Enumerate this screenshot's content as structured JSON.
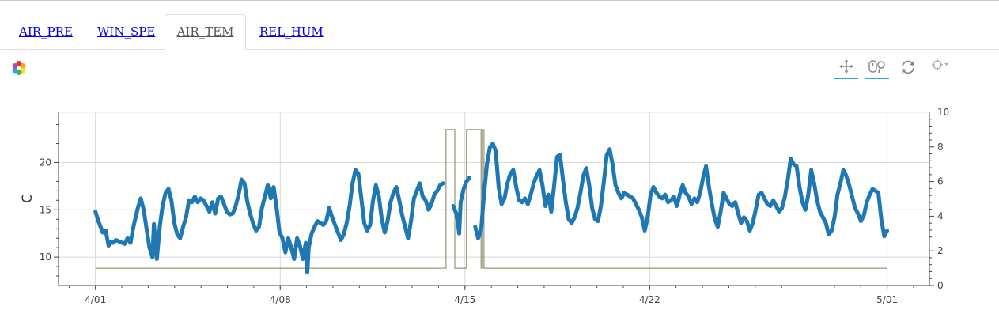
{
  "tabs": [
    {
      "label": "AIR_PRE",
      "active": false
    },
    {
      "label": "WIN_SPE",
      "active": false
    },
    {
      "label": "AIR_TEM",
      "active": true
    },
    {
      "label": "REL_HUM",
      "active": false
    }
  ],
  "toolbar": {
    "icons": [
      "bokeh-logo-icon",
      "pan-icon",
      "wheel-zoom-icon",
      "reset-icon",
      "hover-icon"
    ]
  },
  "colors": {
    "primary_series": "#1f77b4",
    "secondary_series": "#808050",
    "grid": "#d6d6d6",
    "tab_link": "#0000ee",
    "toolbar_active": "#26aae1"
  },
  "chart_data": {
    "type": "line",
    "title": "",
    "xlabel": "",
    "ylabel": "C",
    "y2label": "",
    "x_ticks": [
      "4/01",
      "4/08",
      "4/15",
      "4/22",
      "5/01"
    ],
    "x_tick_days": [
      0,
      7,
      14,
      21,
      30
    ],
    "xlim_days": [
      -1.4,
      31.6
    ],
    "ylim": [
      7,
      25.3
    ],
    "y_ticks": [
      10,
      15,
      20
    ],
    "y2lim": [
      0,
      10
    ],
    "y2_ticks": [
      0,
      2,
      4,
      6,
      8,
      10
    ],
    "grid": true,
    "series": [
      {
        "axis": "left",
        "values": [
          [
            0.0,
            14.8
          ],
          [
            0.2,
            13.8
          ],
          [
            0.4,
            13.0
          ],
          [
            0.5,
            12.6
          ],
          [
            0.7,
            12.8
          ],
          [
            0.8,
            12.0
          ],
          [
            0.9,
            11.2
          ],
          [
            1.0,
            11.6
          ],
          [
            1.2,
            11.5
          ],
          [
            1.4,
            11.8
          ],
          [
            1.7,
            11.6
          ],
          [
            2.0,
            11.4
          ],
          [
            2.2,
            12.0
          ],
          [
            2.4,
            11.5
          ],
          [
            2.6,
            13.2
          ],
          [
            2.9,
            15.2
          ],
          [
            3.1,
            16.2
          ],
          [
            3.3,
            15.0
          ],
          [
            3.5,
            13.0
          ],
          [
            3.7,
            11.0
          ],
          [
            3.9,
            10.0
          ],
          [
            4.0,
            13.5
          ],
          [
            4.2,
            9.8
          ],
          [
            4.4,
            13.2
          ],
          [
            4.6,
            15.5
          ],
          [
            4.8,
            16.8
          ],
          [
            5.0,
            17.2
          ],
          [
            5.2,
            16.0
          ],
          [
            5.4,
            13.6
          ],
          [
            5.6,
            12.4
          ],
          [
            5.8,
            12.0
          ],
          [
            6.0,
            13.2
          ],
          [
            6.2,
            14.2
          ],
          [
            6.4,
            16.0
          ],
          [
            6.6,
            15.8
          ],
          [
            6.8,
            16.4
          ],
          [
            7.0,
            15.8
          ],
          [
            7.2,
            16.2
          ],
          [
            7.4,
            16.0
          ],
          [
            7.6,
            15.4
          ],
          [
            7.8,
            14.8
          ],
          [
            8.0,
            15.8
          ],
          [
            8.2,
            14.6
          ],
          [
            8.4,
            16.2
          ],
          [
            8.6,
            16.4
          ],
          [
            8.8,
            15.6
          ],
          [
            9.0,
            14.8
          ],
          [
            9.2,
            14.5
          ],
          [
            9.4,
            14.6
          ],
          [
            9.6,
            15.4
          ],
          [
            9.8,
            16.6
          ],
          [
            10.0,
            18.2
          ],
          [
            10.2,
            17.8
          ],
          [
            10.4,
            15.8
          ],
          [
            10.6,
            14.5
          ],
          [
            10.8,
            13.5
          ],
          [
            11.0,
            12.8
          ],
          [
            11.2,
            13.2
          ],
          [
            11.4,
            15.2
          ],
          [
            11.6,
            16.4
          ],
          [
            11.8,
            17.6
          ],
          [
            12.0,
            16.2
          ],
          [
            12.2,
            17.4
          ],
          [
            12.4,
            15.2
          ],
          [
            12.6,
            12.6
          ],
          [
            12.8,
            12.0
          ],
          [
            13.0,
            10.5
          ],
          [
            13.2,
            12.0
          ],
          [
            13.4,
            11.0
          ],
          [
            13.6,
            9.8
          ],
          [
            13.8,
            12.0
          ],
          [
            14.0,
            11.2
          ],
          [
            14.2,
            9.8
          ],
          [
            14.4,
            11.5
          ],
          [
            14.5,
            8.4
          ],
          [
            14.6,
            11.0
          ],
          [
            14.8,
            12.5
          ],
          [
            15.0,
            13.2
          ],
          [
            15.2,
            13.8
          ],
          [
            15.4,
            13.6
          ],
          [
            15.6,
            13.4
          ],
          [
            15.8,
            13.8
          ],
          [
            16.0,
            15.2
          ],
          [
            16.2,
            14.2
          ],
          [
            16.4,
            13.4
          ],
          [
            16.6,
            12.6
          ],
          [
            16.8,
            11.8
          ],
          [
            17.0,
            12.4
          ],
          [
            17.2,
            13.6
          ],
          [
            17.4,
            15.4
          ],
          [
            17.6,
            17.8
          ],
          [
            17.8,
            19.2
          ],
          [
            18.0,
            18.8
          ],
          [
            18.2,
            16.2
          ],
          [
            18.4,
            13.6
          ],
          [
            18.6,
            12.8
          ],
          [
            18.8,
            13.4
          ],
          [
            19.0,
            16.0
          ],
          [
            19.2,
            17.6
          ],
          [
            19.4,
            16.4
          ],
          [
            19.6,
            14.0
          ],
          [
            19.8,
            12.6
          ],
          [
            20.0,
            13.8
          ],
          [
            20.2,
            15.8
          ],
          [
            20.4,
            16.8
          ],
          [
            20.6,
            17.4
          ],
          [
            20.8,
            16.0
          ],
          [
            21.0,
            14.4
          ],
          [
            21.2,
            13.2
          ],
          [
            21.4,
            12.0
          ],
          [
            21.6,
            13.8
          ],
          [
            21.8,
            16.2
          ],
          [
            22.0,
            17.0
          ],
          [
            22.2,
            17.8
          ],
          [
            22.4,
            16.4
          ],
          [
            22.6,
            16.0
          ],
          [
            22.8,
            15.0
          ],
          [
            23.0,
            15.6
          ],
          [
            23.2,
            16.6
          ],
          [
            23.4,
            17.0
          ],
          [
            23.6,
            17.6
          ],
          [
            23.8,
            17.8
          ],
          null,
          [
            24.5,
            15.4
          ],
          [
            24.7,
            14.6
          ],
          [
            24.8,
            13.8
          ],
          [
            24.9,
            12.5
          ],
          [
            25.0,
            15.8
          ],
          [
            25.2,
            17.2
          ],
          [
            25.4,
            18.0
          ],
          [
            25.6,
            18.4
          ],
          null,
          [
            26.0,
            13.2
          ],
          [
            26.2,
            12.0
          ],
          [
            26.4,
            12.8
          ],
          [
            26.6,
            16.6
          ],
          [
            26.8,
            19.8
          ],
          [
            27.0,
            21.6
          ],
          [
            27.2,
            22.0
          ],
          [
            27.4,
            21.2
          ],
          [
            27.6,
            17.4
          ],
          [
            27.8,
            15.6
          ],
          [
            28.0,
            16.2
          ],
          [
            28.2,
            17.8
          ],
          [
            28.4,
            18.8
          ],
          [
            28.6,
            19.2
          ],
          [
            28.8,
            17.4
          ],
          [
            29.0,
            16.0
          ],
          [
            29.2,
            15.8
          ],
          [
            29.4,
            16.2
          ],
          [
            29.6,
            15.6
          ],
          [
            29.8,
            16.6
          ],
          [
            30.0,
            17.8
          ],
          [
            30.2,
            18.6
          ],
          [
            30.4,
            19.2
          ],
          [
            30.6,
            17.6
          ],
          [
            30.8,
            15.4
          ],
          [
            31.0,
            16.6
          ],
          [
            31.2,
            14.8
          ],
          [
            31.4,
            17.6
          ],
          [
            31.6,
            20.6
          ],
          [
            31.8,
            20.8
          ],
          [
            32.0,
            18.2
          ],
          [
            32.2,
            15.8
          ],
          [
            32.4,
            14.0
          ],
          [
            32.6,
            13.6
          ],
          [
            32.8,
            14.2
          ],
          [
            33.0,
            15.2
          ],
          [
            33.2,
            16.8
          ],
          [
            33.4,
            18.6
          ],
          [
            33.6,
            19.4
          ],
          [
            33.8,
            17.6
          ],
          [
            34.0,
            15.2
          ],
          [
            34.2,
            14.0
          ],
          [
            34.4,
            13.8
          ],
          [
            34.6,
            15.4
          ],
          [
            34.8,
            18.0
          ],
          [
            35.0,
            20.8
          ],
          [
            35.2,
            21.4
          ],
          [
            35.4,
            19.8
          ],
          [
            35.6,
            17.6
          ],
          [
            35.8,
            16.8
          ],
          [
            36.0,
            16.2
          ],
          [
            36.2,
            16.8
          ],
          [
            36.4,
            16.6
          ],
          [
            36.6,
            16.4
          ],
          [
            36.8,
            16.2
          ],
          [
            37.0,
            15.6
          ],
          [
            37.2,
            15.0
          ],
          [
            37.4,
            14.2
          ],
          [
            37.6,
            12.8
          ],
          [
            37.8,
            14.2
          ],
          [
            38.0,
            16.6
          ],
          [
            38.2,
            17.4
          ],
          [
            38.4,
            16.8
          ],
          [
            38.6,
            16.4
          ],
          [
            38.8,
            16.2
          ],
          [
            39.0,
            16.6
          ],
          [
            39.2,
            15.8
          ],
          [
            39.4,
            16.0
          ],
          [
            39.6,
            16.4
          ],
          [
            39.8,
            15.4
          ],
          [
            40.0,
            16.6
          ],
          [
            40.2,
            17.6
          ],
          [
            40.4,
            16.8
          ],
          [
            40.6,
            16.4
          ],
          [
            40.8,
            15.6
          ],
          [
            41.0,
            16.2
          ],
          [
            41.2,
            15.8
          ],
          [
            41.4,
            16.8
          ],
          [
            41.6,
            18.4
          ],
          [
            41.8,
            19.6
          ],
          [
            42.0,
            17.4
          ],
          [
            42.2,
            15.6
          ],
          [
            42.4,
            14.0
          ],
          [
            42.6,
            13.2
          ],
          [
            42.8,
            14.8
          ],
          [
            43.0,
            16.8
          ],
          [
            43.2,
            16.2
          ],
          [
            43.4,
            15.6
          ],
          [
            43.6,
            15.4
          ],
          [
            43.8,
            15.8
          ],
          [
            44.0,
            14.6
          ],
          [
            44.2,
            13.6
          ],
          [
            44.4,
            14.2
          ],
          [
            44.6,
            13.8
          ],
          [
            44.8,
            12.8
          ],
          [
            45.0,
            13.6
          ],
          [
            45.2,
            15.0
          ],
          [
            45.4,
            16.6
          ],
          [
            45.6,
            16.8
          ],
          [
            45.8,
            16.2
          ],
          [
            46.0,
            15.6
          ],
          [
            46.2,
            15.4
          ],
          [
            46.4,
            16.0
          ],
          [
            46.6,
            15.4
          ],
          [
            46.8,
            14.8
          ],
          [
            47.0,
            15.2
          ],
          [
            47.2,
            16.4
          ],
          [
            47.4,
            18.2
          ],
          [
            47.6,
            20.4
          ],
          [
            47.8,
            19.8
          ],
          [
            48.0,
            19.6
          ],
          [
            48.2,
            17.4
          ],
          [
            48.4,
            15.8
          ],
          [
            48.6,
            15.0
          ],
          [
            48.8,
            16.6
          ],
          [
            49.0,
            19.2
          ],
          [
            49.2,
            17.8
          ],
          [
            49.4,
            16.0
          ],
          [
            49.6,
            14.8
          ],
          [
            49.8,
            14.2
          ],
          [
            50.0,
            13.6
          ],
          [
            50.2,
            12.4
          ],
          [
            50.4,
            12.8
          ],
          [
            50.6,
            14.2
          ],
          [
            50.8,
            16.6
          ],
          [
            51.0,
            17.8
          ],
          [
            51.2,
            19.2
          ],
          [
            51.4,
            18.6
          ],
          [
            51.6,
            17.6
          ],
          [
            51.8,
            16.4
          ],
          [
            52.0,
            15.2
          ],
          [
            52.2,
            14.6
          ],
          [
            52.4,
            13.8
          ],
          [
            52.6,
            14.4
          ],
          [
            52.8,
            15.8
          ],
          [
            53.0,
            16.6
          ],
          [
            53.2,
            17.2
          ],
          [
            53.4,
            17.0
          ],
          [
            53.6,
            16.8
          ],
          [
            53.8,
            14.0
          ],
          [
            54.0,
            12.2
          ],
          [
            54.2,
            12.8
          ]
        ]
      },
      {
        "axis": "right",
        "values": [
          [
            0.0,
            1.0
          ],
          [
            24.0,
            1.0
          ],
          [
            24.0,
            9.0
          ],
          [
            24.6,
            9.0
          ],
          [
            24.6,
            1.0
          ],
          [
            25.4,
            1.0
          ],
          [
            25.4,
            9.0
          ],
          [
            26.4,
            9.0
          ],
          [
            26.4,
            1.0
          ],
          [
            26.5,
            1.0
          ],
          [
            26.5,
            9.0
          ],
          [
            26.6,
            9.0
          ],
          [
            26.6,
            1.0
          ],
          [
            54.2,
            1.0
          ]
        ]
      }
    ]
  }
}
